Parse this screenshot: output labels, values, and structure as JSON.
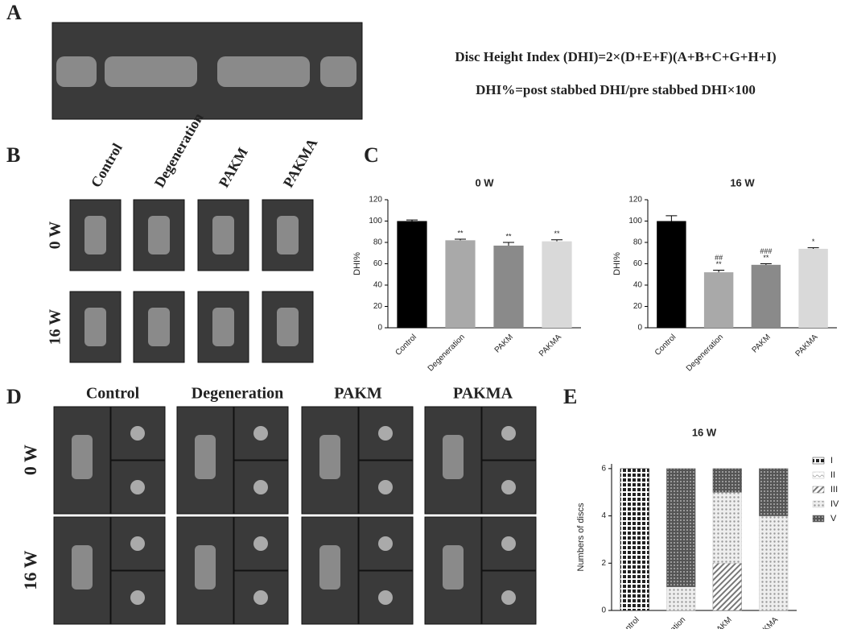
{
  "panel_labels": [
    "A",
    "B",
    "C",
    "D",
    "E"
  ],
  "formula": [
    "Disc Height Index (DHI)=2×(D+E+F)(A+B+C+G+H+I)",
    "DHI%=post stabbed DHI/pre stabbed DHI×100"
  ],
  "groups": [
    "Control",
    "Degeneration",
    "PAKM",
    "PAKMA"
  ],
  "timepoints": [
    "0 W",
    "16 W"
  ],
  "chart_data": [
    {
      "type": "bar",
      "title": "0 W",
      "y_label": "DHI%",
      "categories": [
        "Control",
        "Degeneration",
        "PAKM",
        "PAKMA"
      ],
      "values": [
        100,
        82,
        77,
        81
      ],
      "errors": [
        1,
        1,
        3,
        1.5
      ],
      "annotations": [
        null,
        "**",
        "**",
        "**"
      ],
      "annotations_top": [
        null,
        null,
        null,
        null
      ],
      "colors": [
        "#000000",
        "#a9a9a9",
        "#8a8a8a",
        "#d9d9d9"
      ],
      "ylim": [
        0,
        120
      ],
      "yticks": [
        0,
        20,
        40,
        60,
        80,
        100,
        120
      ]
    },
    {
      "type": "bar",
      "title": "16 W",
      "y_label": "DHI%",
      "categories": [
        "Control",
        "Degeneration",
        "PAKM",
        "PAKMA"
      ],
      "values": [
        100,
        52,
        59,
        74
      ],
      "errors": [
        5,
        2,
        1,
        1
      ],
      "annotations": [
        null,
        "**",
        "**",
        "*"
      ],
      "annotations_top": [
        null,
        "##",
        "###",
        null
      ],
      "colors": [
        "#000000",
        "#a9a9a9",
        "#8a8a8a",
        "#d9d9d9"
      ],
      "ylim": [
        0,
        120
      ],
      "yticks": [
        0,
        20,
        40,
        60,
        80,
        100,
        120
      ]
    },
    {
      "type": "stacked_bar",
      "title": "16 W",
      "y_label": "Numbers of discs",
      "categories": [
        "Control",
        "Degeneration",
        "PAKM",
        "PAKMA"
      ],
      "series": [
        {
          "name": "I",
          "color": "#222222",
          "values": [
            6,
            0,
            0,
            0
          ]
        },
        {
          "name": "II",
          "color": "#bbbbbb",
          "values": [
            0,
            0,
            0,
            0
          ]
        },
        {
          "name": "III",
          "color": "#888888",
          "values": [
            0,
            0,
            2,
            0
          ]
        },
        {
          "name": "IV",
          "color": "#cccccc",
          "values": [
            0,
            1,
            3,
            4
          ]
        },
        {
          "name": "V",
          "color": "#666666",
          "values": [
            0,
            5,
            1,
            2
          ]
        }
      ],
      "ylim": [
        0,
        6.2
      ],
      "yticks": [
        0,
        2,
        4,
        6
      ]
    }
  ]
}
